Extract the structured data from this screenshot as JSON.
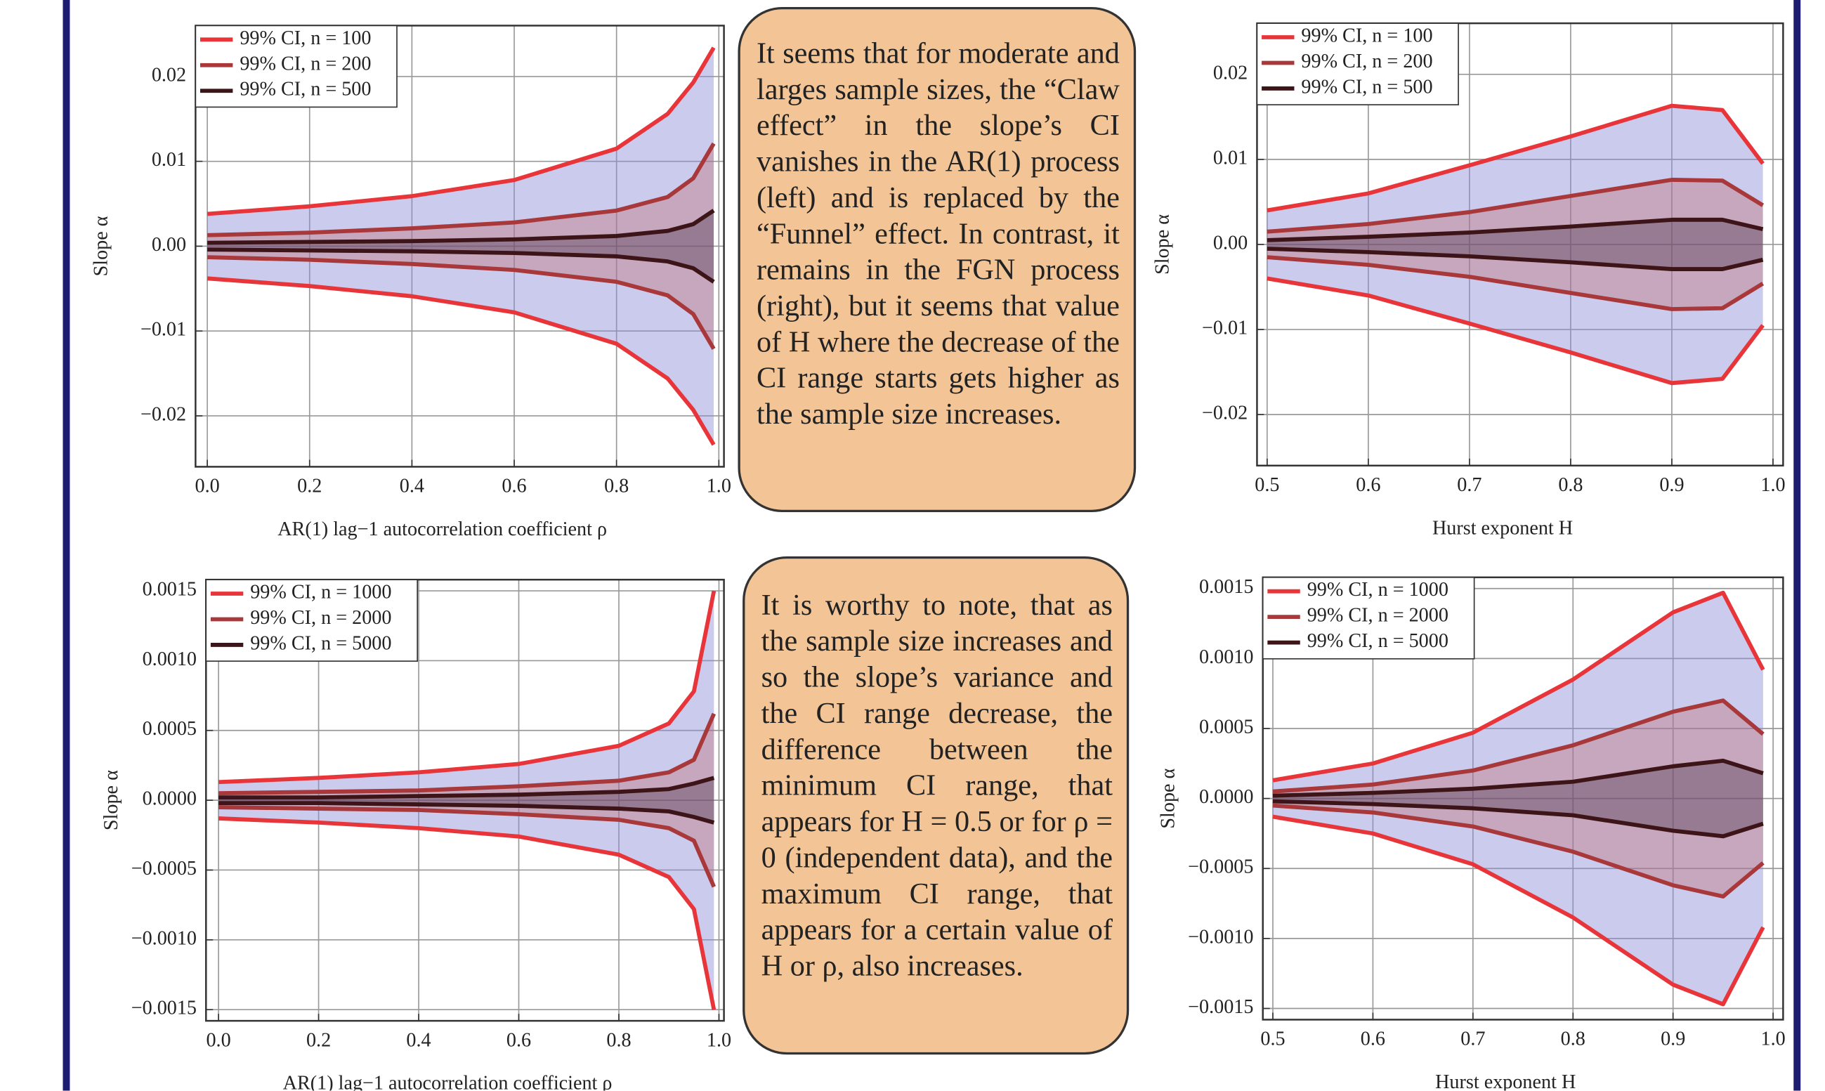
{
  "chart_data": [
    {
      "type": "band",
      "y_label": "Slope α",
      "x_label": "AR(1) lag−1 autocorrelation coefficient ρ",
      "x": [
        0,
        0.2,
        0.4,
        0.6,
        0.8,
        0.9,
        0.95,
        0.99
      ],
      "series": [
        {
          "name": "99% CI, n = 100",
          "color": "#e8353a",
          "upper": [
            0.0038,
            0.0047,
            0.0059,
            0.0078,
            0.0115,
            0.0156,
            0.0193,
            0.0234
          ],
          "lower": [
            -0.0038,
            -0.0047,
            -0.0059,
            -0.0078,
            -0.0115,
            -0.0156,
            -0.0193,
            -0.0234
          ]
        },
        {
          "name": "99% CI, n = 200",
          "color": "#a8383a",
          "upper": [
            0.0013,
            0.0016,
            0.0021,
            0.0028,
            0.0042,
            0.0058,
            0.008,
            0.0121
          ],
          "lower": [
            -0.0013,
            -0.0016,
            -0.0021,
            -0.0028,
            -0.0042,
            -0.0058,
            -0.008,
            -0.0121
          ]
        },
        {
          "name": "99% CI, n = 500",
          "color": "#3d1518",
          "upper": [
            0.0004,
            0.0005,
            0.0006,
            0.0008,
            0.0012,
            0.0018,
            0.0026,
            0.0042
          ],
          "lower": [
            -0.0004,
            -0.0005,
            -0.0006,
            -0.0008,
            -0.0012,
            -0.0018,
            -0.0026,
            -0.0042
          ]
        }
      ],
      "xlim": [
        -0.023,
        1.01
      ],
      "ylim": [
        -0.026,
        0.026
      ],
      "xticks": [
        {
          "value": 0,
          "label": "0.0"
        },
        0.2,
        0.4,
        0.6,
        0.8,
        {
          "value": 1,
          "label": "1.0"
        }
      ],
      "yticks": [
        {
          "value": -0.02,
          "label": "−0.02"
        },
        {
          "value": -0.01,
          "label": "−0.01"
        },
        {
          "value": 0,
          "label": "0.00"
        },
        0.01,
        0.02
      ],
      "grid": true,
      "legend": "upper left"
    },
    {
      "type": "band",
      "y_label": "Slope α",
      "x_label": "Hurst exponent H",
      "x": [
        0.5,
        0.6,
        0.7,
        0.8,
        0.9,
        0.95,
        0.99
      ],
      "series": [
        {
          "name": "99% CI, n = 100",
          "color": "#e8353a",
          "upper": [
            0.004,
            0.006,
            0.0093,
            0.0127,
            0.0163,
            0.0158,
            0.0095
          ],
          "lower": [
            -0.004,
            -0.006,
            -0.0093,
            -0.0127,
            -0.0163,
            -0.0158,
            -0.0095
          ]
        },
        {
          "name": "99% CI, n = 200",
          "color": "#a8383a",
          "upper": [
            0.0015,
            0.0024,
            0.0038,
            0.0057,
            0.0076,
            0.0075,
            0.0046
          ],
          "lower": [
            -0.0015,
            -0.0024,
            -0.0038,
            -0.0057,
            -0.0076,
            -0.0075,
            -0.0046
          ]
        },
        {
          "name": "99% CI, n = 500",
          "color": "#3d1518",
          "upper": [
            0.0005,
            0.0009,
            0.0014,
            0.0021,
            0.0029,
            0.0029,
            0.0018
          ],
          "lower": [
            -0.0005,
            -0.0009,
            -0.0014,
            -0.0021,
            -0.0029,
            -0.0029,
            -0.0018
          ]
        }
      ],
      "xlim": [
        0.49,
        1.01
      ],
      "ylim": [
        -0.026,
        0.026
      ],
      "xticks": [
        0.5,
        0.6,
        0.7,
        0.8,
        0.9,
        {
          "value": 1,
          "label": "1.0"
        }
      ],
      "yticks": [
        {
          "value": -0.02,
          "label": "−0.02"
        },
        {
          "value": -0.01,
          "label": "−0.01"
        },
        {
          "value": 0,
          "label": "0.00"
        },
        0.01,
        0.02
      ],
      "grid": true,
      "legend": "upper left"
    },
    {
      "type": "band",
      "y_label": "Slope α",
      "x_label": "AR(1) lag−1 autocorrelation coefficient ρ",
      "x": [
        0,
        0.2,
        0.4,
        0.6,
        0.8,
        0.9,
        0.95,
        0.99
      ],
      "series": [
        {
          "name": "99% CI, n = 1000",
          "color": "#e8353a",
          "upper": [
            0.00013,
            0.00016,
            0.0002,
            0.00026,
            0.00039,
            0.00055,
            0.00078,
            0.0015
          ],
          "lower": [
            -0.00013,
            -0.00016,
            -0.0002,
            -0.00026,
            -0.00039,
            -0.00055,
            -0.00078,
            -0.0015
          ]
        },
        {
          "name": "99% CI, n = 2000",
          "color": "#a8383a",
          "upper": [
            5e-05,
            6e-05,
            7e-05,
            0.0001,
            0.00014,
            0.0002,
            0.00029,
            0.00062
          ],
          "lower": [
            -5e-05,
            -6e-05,
            -7e-05,
            -0.0001,
            -0.00014,
            -0.0002,
            -0.00029,
            -0.00062
          ]
        },
        {
          "name": "99% CI, n = 5000",
          "color": "#3d1518",
          "upper": [
            2e-05,
            2e-05,
            3e-05,
            4e-05,
            6e-05,
            8e-05,
            0.00012,
            0.00016
          ],
          "lower": [
            -2e-05,
            -2e-05,
            -3e-05,
            -4e-05,
            -6e-05,
            -8e-05,
            -0.00012,
            -0.00016
          ]
        }
      ],
      "xlim": [
        -0.025,
        1.01
      ],
      "ylim": [
        -0.00158,
        0.00158
      ],
      "xticks": [
        {
          "value": 0,
          "label": "0.0"
        },
        0.2,
        0.4,
        0.6,
        0.8,
        {
          "value": 1,
          "label": "1.0"
        }
      ],
      "yticks": [
        {
          "value": -0.0015,
          "label": "−0.0015"
        },
        {
          "value": -0.001,
          "label": "−0.0010"
        },
        {
          "value": -0.0005,
          "label": "−0.0005"
        },
        {
          "value": 0,
          "label": "0.0000"
        },
        0.0005,
        {
          "value": 0.001,
          "label": "0.0010"
        },
        0.0015
      ],
      "grid": true,
      "legend": "upper left"
    },
    {
      "type": "band",
      "y_label": "Slope α",
      "x_label": "Hurst exponent H",
      "x": [
        0.5,
        0.6,
        0.7,
        0.8,
        0.9,
        0.95,
        0.99
      ],
      "series": [
        {
          "name": "99% CI, n = 1000",
          "color": "#e8353a",
          "upper": [
            0.00013,
            0.00025,
            0.00047,
            0.00085,
            0.00133,
            0.00147,
            0.00092
          ],
          "lower": [
            -0.00013,
            -0.00025,
            -0.00047,
            -0.00085,
            -0.00133,
            -0.00147,
            -0.00092
          ]
        },
        {
          "name": "99% CI, n = 2000",
          "color": "#a8383a",
          "upper": [
            5e-05,
            0.0001,
            0.0002,
            0.00038,
            0.00062,
            0.0007,
            0.00046
          ],
          "lower": [
            -5e-05,
            -0.0001,
            -0.0002,
            -0.00038,
            -0.00062,
            -0.0007,
            -0.00046
          ]
        },
        {
          "name": "99% CI, n = 5000",
          "color": "#3d1518",
          "upper": [
            2e-05,
            4e-05,
            7e-05,
            0.00012,
            0.00023,
            0.00027,
            0.00018
          ],
          "lower": [
            -2e-05,
            -4e-05,
            -7e-05,
            -0.00012,
            -0.00023,
            -0.00027,
            -0.00018
          ]
        }
      ],
      "xlim": [
        0.49,
        1.01
      ],
      "ylim": [
        -0.00158,
        0.00158
      ],
      "xticks": [
        0.5,
        0.6,
        0.7,
        0.8,
        0.9,
        {
          "value": 1,
          "label": "1.0"
        }
      ],
      "yticks": [
        {
          "value": -0.0015,
          "label": "−0.0015"
        },
        {
          "value": -0.001,
          "label": "−0.0010"
        },
        {
          "value": -0.0005,
          "label": "−0.0005"
        },
        {
          "value": 0,
          "label": "0.0000"
        },
        0.0005,
        {
          "value": 0.001,
          "label": "0.0010"
        },
        0.0015
      ],
      "grid": true,
      "legend": "upper left"
    }
  ],
  "text_boxes": [
    "It seems that for moderate and larges sample sizes, the “Claw effect” in the slope’s CI vanishes in the AR(1) process (left) and is replaced by the “Funnel” effect. In contrast, it remains in the FGN process (right), but it seems that value of H where the decrease of the CI range starts gets higher as the sample size increases.",
    "It is worthy to note, that as the sample size increases and so the slope’s variance and the CI range decrease, the difference between the minimum CI range, that appears for H = 0.5 or for ρ = 0 (independent data), and the maximum CI range, that appears for a certain value of H or ρ, also increases."
  ]
}
